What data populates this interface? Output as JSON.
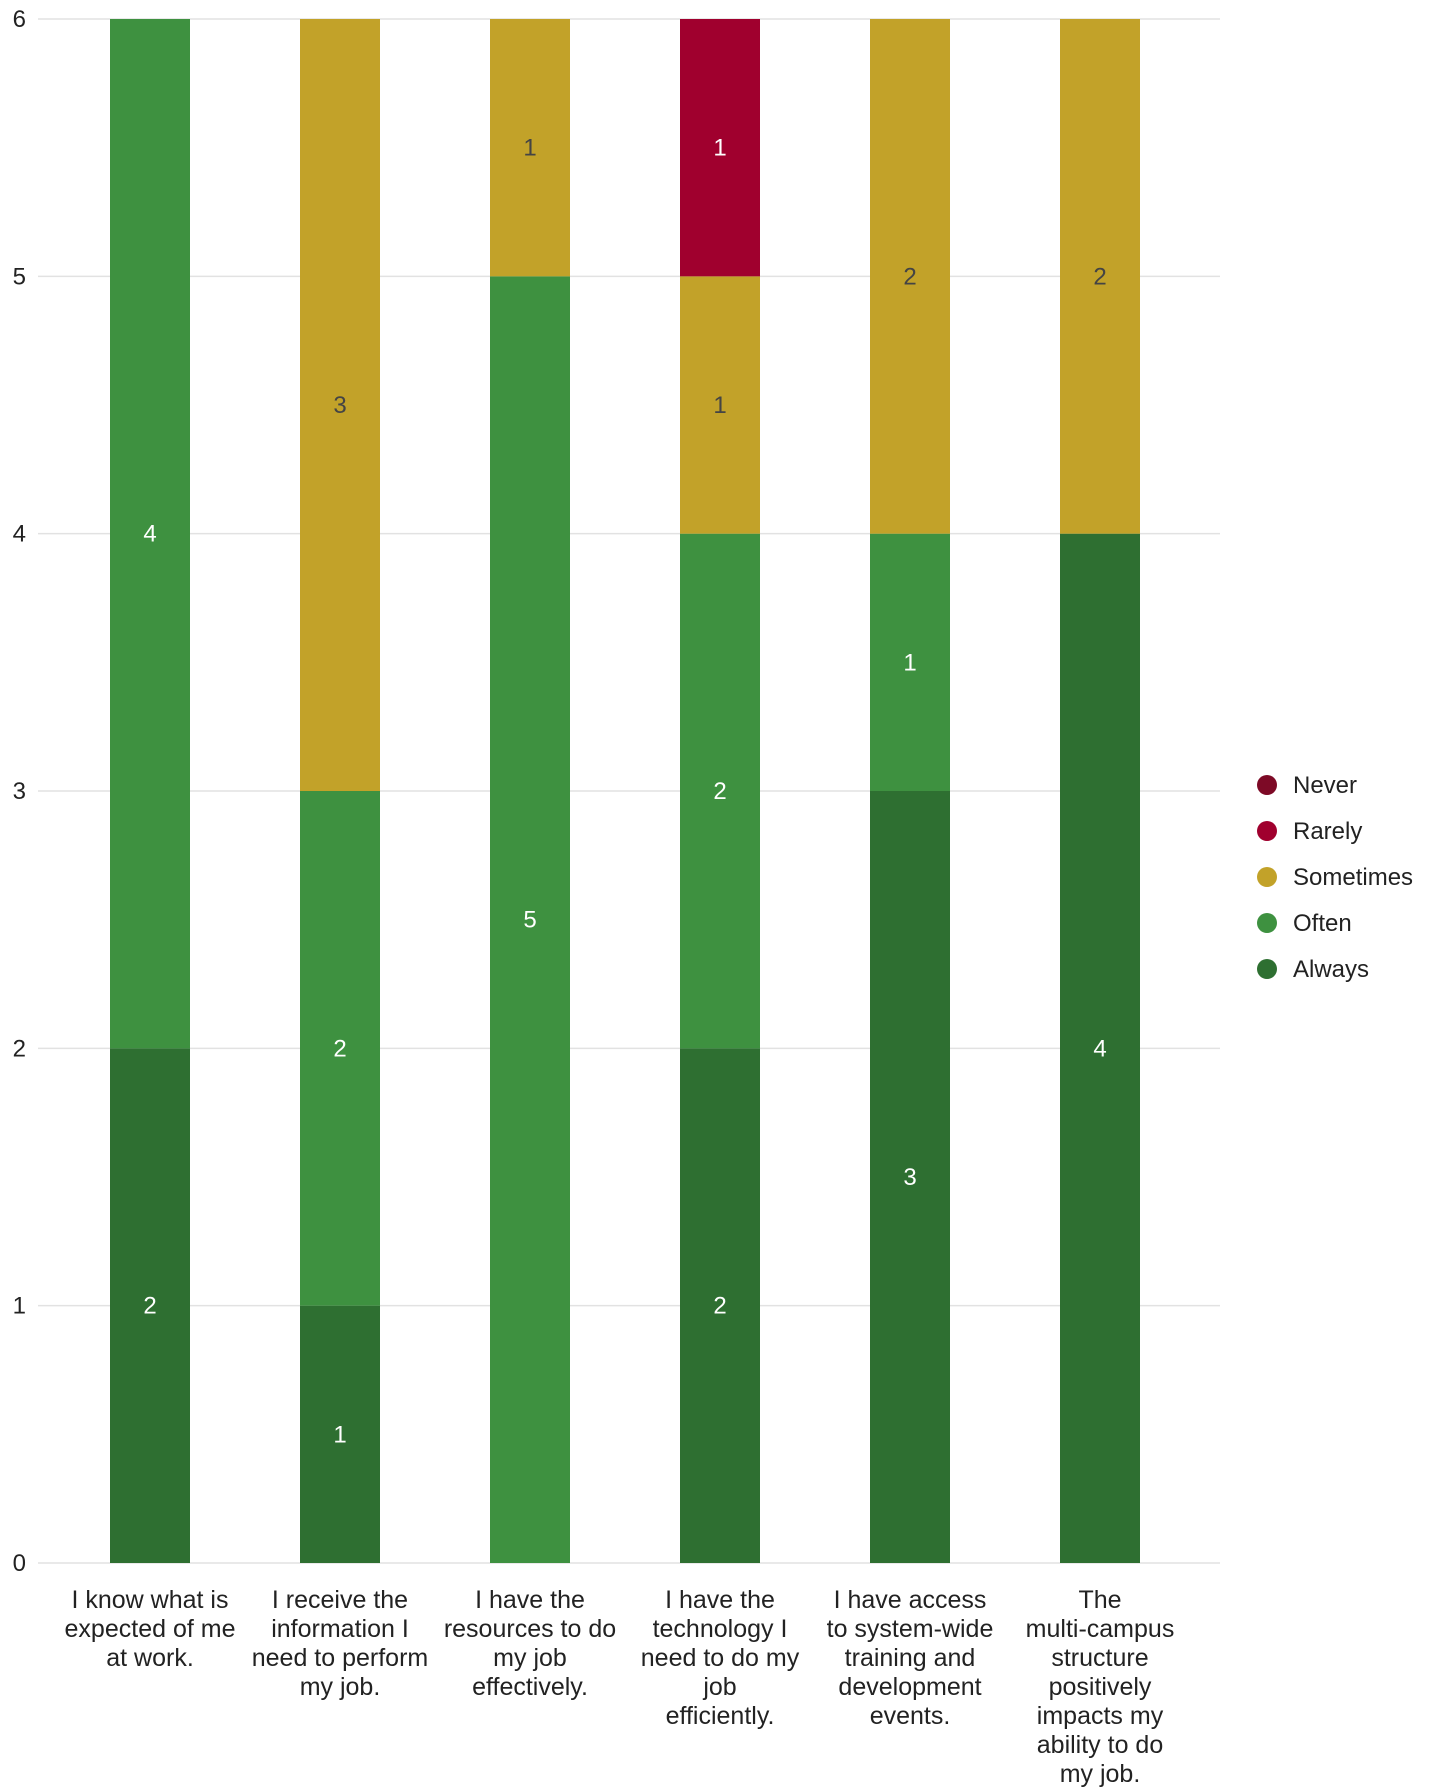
{
  "chart_data": {
    "type": "bar",
    "stacked": true,
    "categories": [
      "I know what is expected of me at work.",
      "I receive the information I need to perform my job.",
      "I have the resources to do my job effectively.",
      "I have the technology I need to do my job efficiently.",
      "I have access to system-wide training and development events.",
      "The multi-campus structure positively impacts my ability to do my job."
    ],
    "series": [
      {
        "name": "Never",
        "color": "#7d0a26",
        "values": [
          0,
          0,
          0,
          0,
          0,
          0
        ]
      },
      {
        "name": "Rarely",
        "color": "#a0002e",
        "values": [
          0,
          0,
          0,
          1,
          0,
          0
        ]
      },
      {
        "name": "Sometimes",
        "color": "#c2a229",
        "values": [
          0,
          3,
          1,
          1,
          2,
          2
        ]
      },
      {
        "name": "Often",
        "color": "#3e9140",
        "values": [
          4,
          2,
          5,
          2,
          1,
          0
        ]
      },
      {
        "name": "Always",
        "color": "#2e6f31",
        "values": [
          2,
          1,
          0,
          2,
          3,
          4
        ]
      }
    ],
    "stack_order_bottom_to_top": [
      "Always",
      "Often",
      "Sometimes",
      "Rarely",
      "Never"
    ],
    "ylim": [
      0,
      6
    ],
    "yticks": [
      "0",
      "1",
      "2",
      "3",
      "4",
      "5",
      "6"
    ],
    "grid": true,
    "legend_position": "right",
    "title": "",
    "xlabel": "",
    "ylabel": ""
  }
}
